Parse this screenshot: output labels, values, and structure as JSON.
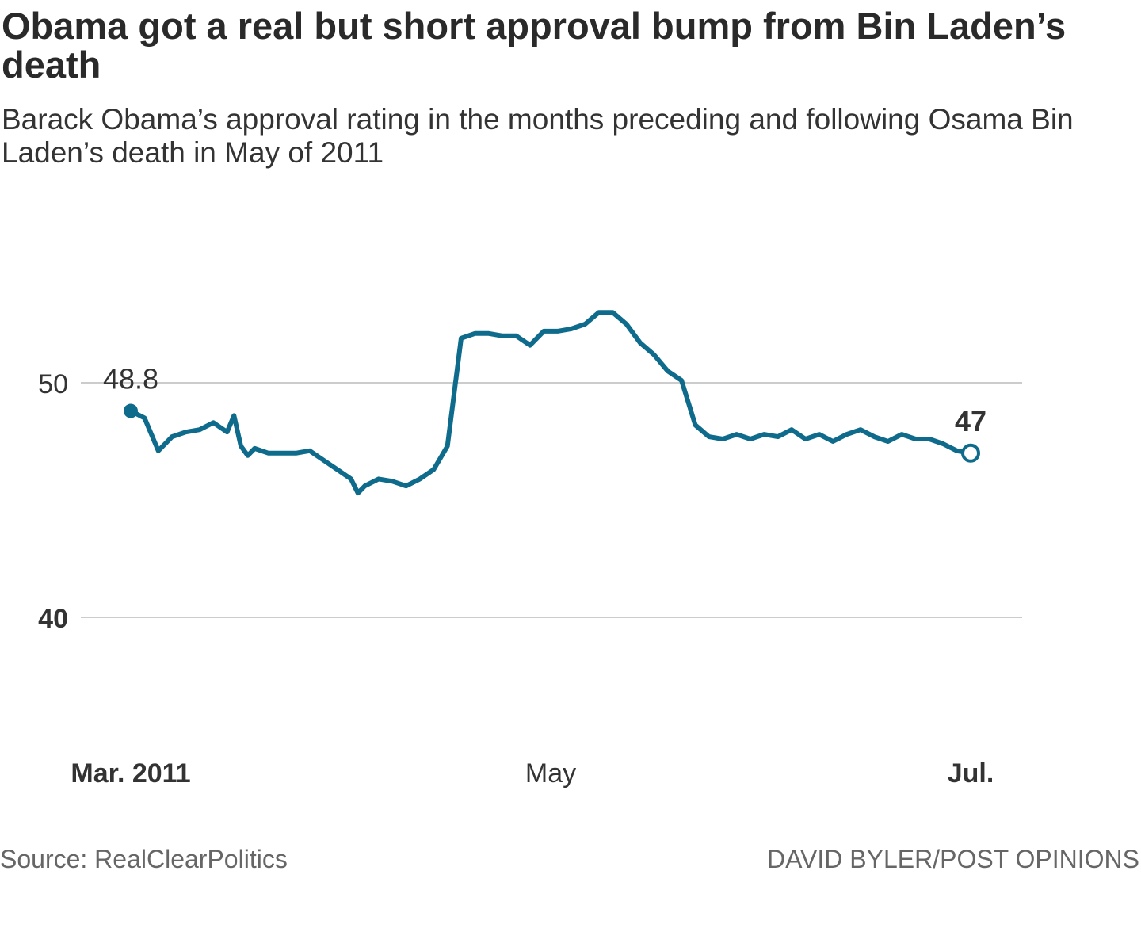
{
  "chart_data": {
    "type": "line",
    "title": "Obama got a real but short approval bump from Bin Laden’s death",
    "subtitle": "Barack Obama’s approval rating in the months preceding and following Osama Bin Laden’s death in May of 2011",
    "source": "Source: RealClearPolitics",
    "credit": "DAVID BYLER/POST OPINIONS",
    "line_color": "#0f6b8c",
    "grid_color": "#cccccc",
    "ylim": [
      35.5,
      55.5
    ],
    "xlim": [
      0,
      123
    ],
    "y_ticks": [
      {
        "value": 50,
        "label": "50",
        "bold": false
      },
      {
        "value": 40,
        "label": "40",
        "bold": true
      }
    ],
    "x_ticks": [
      {
        "x": 0,
        "label": "Mar. 2011",
        "bold": true
      },
      {
        "x": 61,
        "label": "May",
        "bold": false
      },
      {
        "x": 122,
        "label": "Jul.",
        "bold": true
      }
    ],
    "grid": true,
    "start_label": "48.8",
    "end_label": "47",
    "series": [
      {
        "x": [
          0,
          2,
          4,
          6,
          8,
          10,
          12,
          14,
          15,
          16,
          17,
          18,
          20,
          22,
          24,
          26,
          28,
          30,
          32,
          33,
          34,
          36,
          38,
          40,
          42,
          44,
          46,
          48,
          50,
          52,
          54,
          56,
          57,
          58,
          60,
          62,
          64,
          66,
          68,
          70,
          72,
          74,
          76,
          78,
          80,
          82,
          84,
          86,
          88,
          90,
          92,
          94,
          96,
          98,
          100,
          102,
          104,
          106,
          108,
          110,
          112,
          114,
          116,
          118,
          120,
          122
        ],
        "values": [
          48.8,
          48.5,
          47.1,
          47.7,
          47.9,
          48.0,
          48.3,
          47.9,
          48.6,
          47.3,
          46.9,
          47.2,
          47.0,
          47.0,
          47.0,
          47.1,
          46.7,
          46.3,
          45.9,
          45.3,
          45.6,
          45.9,
          45.8,
          45.6,
          45.9,
          46.3,
          47.3,
          51.9,
          52.1,
          52.1,
          52.0,
          52.0,
          51.8,
          51.6,
          52.2,
          52.2,
          52.3,
          52.5,
          53.0,
          53.0,
          52.5,
          51.7,
          51.2,
          50.5,
          50.1,
          48.2,
          47.7,
          47.6,
          47.8,
          47.6,
          47.8,
          47.7,
          48.0,
          47.6,
          47.8,
          47.5,
          47.8,
          48.0,
          47.7,
          47.5,
          47.8,
          47.6,
          47.6,
          47.4,
          47.1,
          47.0
        ]
      }
    ]
  }
}
